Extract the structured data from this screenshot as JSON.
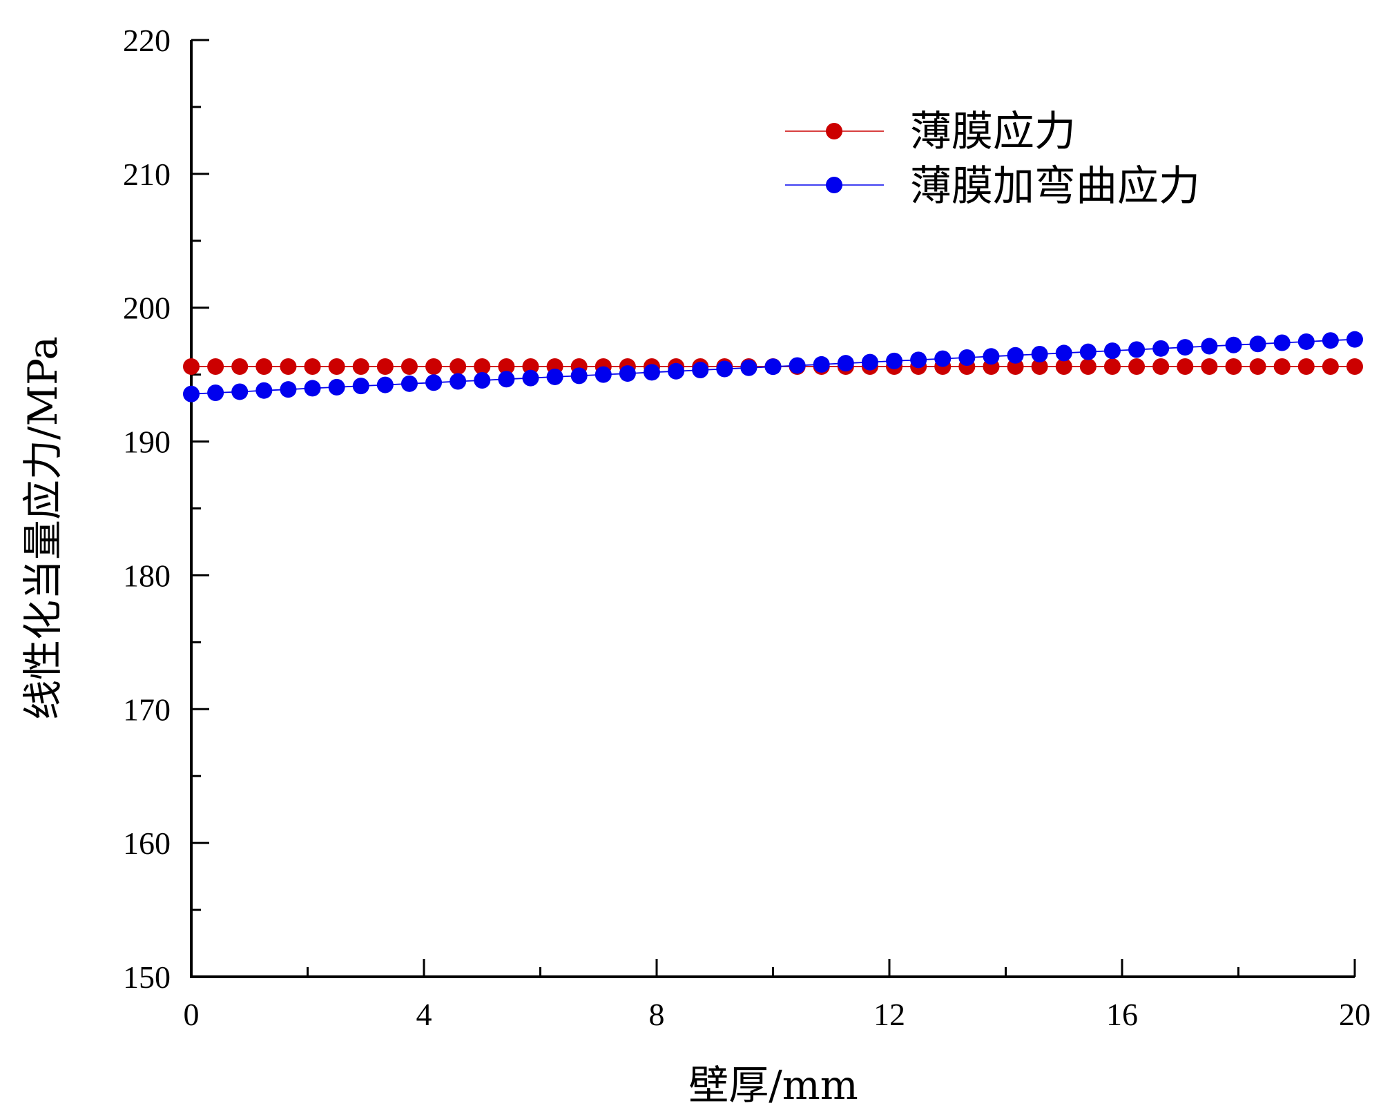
{
  "chart_data": {
    "type": "line",
    "title": "",
    "xlabel": "壁厚/mm",
    "ylabel": "线性化当量应力/MPa",
    "xlim": [
      0,
      20
    ],
    "ylim": [
      150,
      220
    ],
    "xticks": [
      0,
      4,
      8,
      12,
      16,
      20
    ],
    "yticks": [
      150,
      160,
      170,
      180,
      190,
      200,
      210,
      220
    ],
    "x_tick_labels": [
      "0",
      "4",
      "8",
      "12",
      "16",
      "20"
    ],
    "y_tick_labels": [
      "150",
      "160",
      "170",
      "180",
      "190",
      "200",
      "210",
      "220"
    ],
    "grid": false,
    "legend_position": "top-right",
    "x": [
      0,
      0.4167,
      0.8333,
      1.25,
      1.6667,
      2.0833,
      2.5,
      2.9167,
      3.3333,
      3.75,
      4.1667,
      4.5833,
      5.0,
      5.4167,
      5.8333,
      6.25,
      6.6667,
      7.0833,
      7.5,
      7.9167,
      8.3333,
      8.75,
      9.1667,
      9.5833,
      10.0,
      10.4167,
      10.8333,
      11.25,
      11.6667,
      12.0833,
      12.5,
      12.9167,
      13.3333,
      13.75,
      14.1667,
      14.5833,
      15.0,
      15.4167,
      15.8333,
      16.25,
      16.6667,
      17.0833,
      17.5,
      17.9167,
      18.3333,
      18.75,
      19.1667,
      19.5833,
      20.0
    ],
    "series": [
      {
        "name": "薄膜应力",
        "color": "#cc0000",
        "values": [
          195.6,
          195.6,
          195.6,
          195.6,
          195.6,
          195.6,
          195.6,
          195.6,
          195.6,
          195.6,
          195.6,
          195.6,
          195.6,
          195.6,
          195.6,
          195.6,
          195.6,
          195.6,
          195.6,
          195.6,
          195.6,
          195.6,
          195.6,
          195.6,
          195.6,
          195.6,
          195.6,
          195.6,
          195.6,
          195.6,
          195.6,
          195.6,
          195.6,
          195.6,
          195.6,
          195.6,
          195.6,
          195.6,
          195.6,
          195.6,
          195.6,
          195.6,
          195.6,
          195.6,
          195.6,
          195.6,
          195.6,
          195.6,
          195.6
        ]
      },
      {
        "name": "薄膜加弯曲应力",
        "color": "#0000ee",
        "values": [
          193.55,
          193.64,
          193.72,
          193.81,
          193.89,
          193.98,
          194.06,
          194.15,
          194.23,
          194.32,
          194.4,
          194.49,
          194.57,
          194.66,
          194.74,
          194.83,
          194.91,
          195.0,
          195.08,
          195.17,
          195.25,
          195.34,
          195.42,
          195.51,
          195.59,
          195.68,
          195.76,
          195.85,
          195.93,
          196.02,
          196.1,
          196.19,
          196.27,
          196.36,
          196.44,
          196.53,
          196.61,
          196.7,
          196.78,
          196.87,
          196.95,
          197.04,
          197.12,
          197.21,
          197.29,
          197.38,
          197.46,
          197.55,
          197.63
        ]
      }
    ]
  }
}
